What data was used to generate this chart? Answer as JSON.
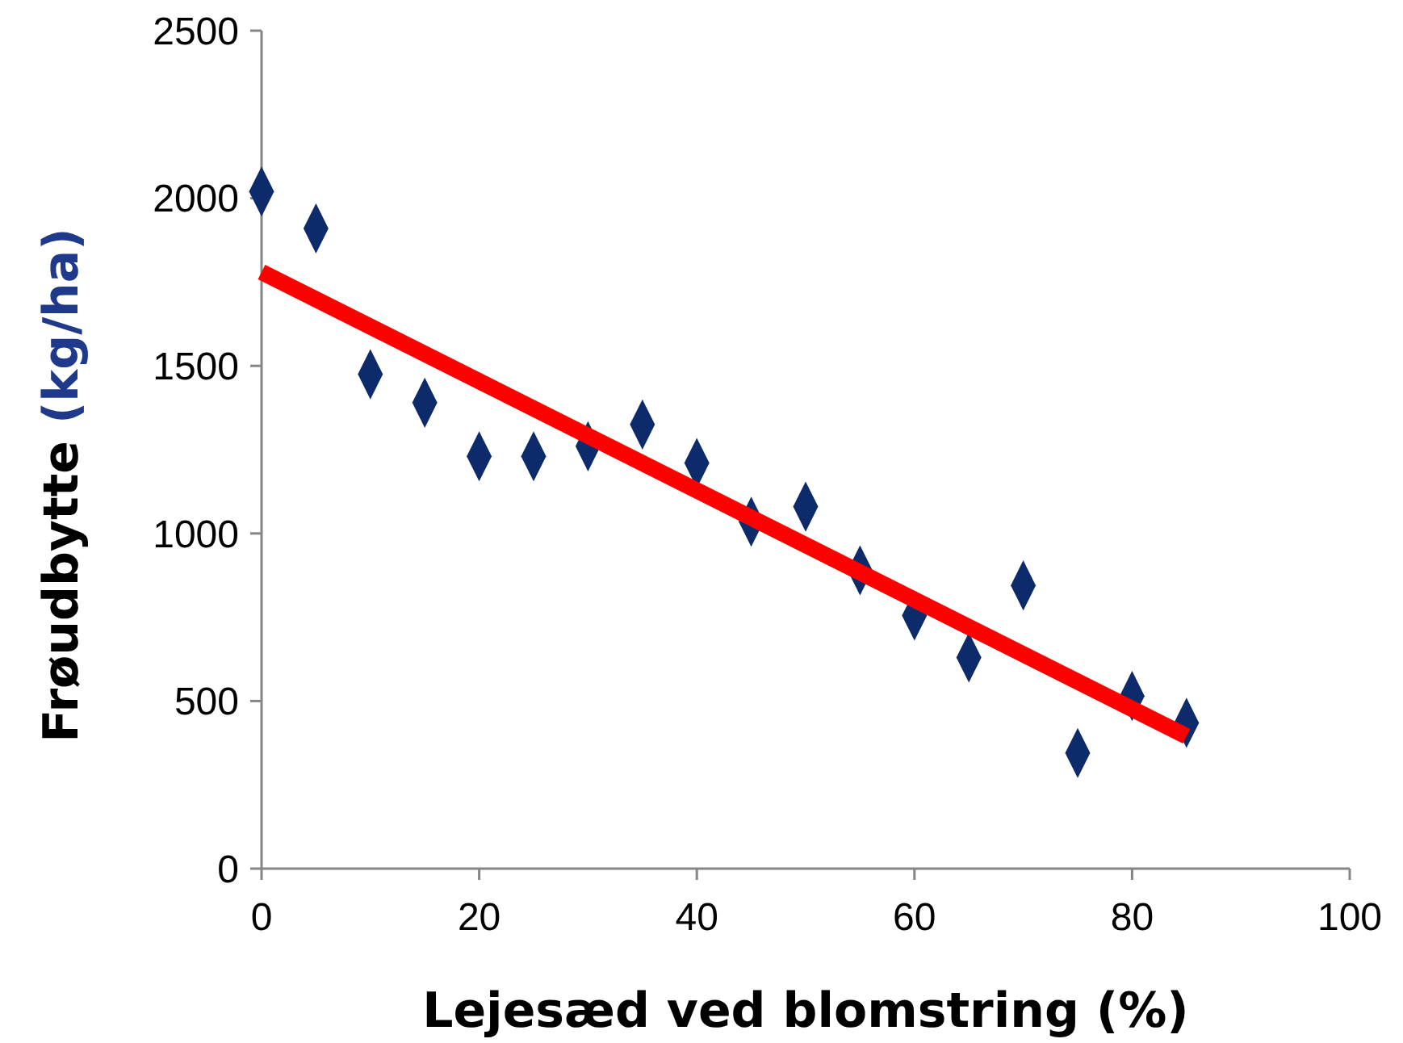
{
  "chart_data": {
    "type": "scatter",
    "xlabel": "Lejesæd ved blomstring (%)",
    "ylabel": "Frøudbytte (kg/ha)",
    "x": [
      0,
      5,
      10,
      15,
      20,
      25,
      30,
      35,
      40,
      45,
      50,
      55,
      60,
      65,
      70,
      75,
      80,
      85
    ],
    "series": [
      {
        "color": "#0d2a6b",
        "marker": "diamond",
        "values": [
          2020,
          1910,
          1475,
          1390,
          1230,
          1230,
          1260,
          1325,
          1210,
          1035,
          1080,
          890,
          755,
          630,
          845,
          345,
          515,
          435
        ]
      },
      {
        "type": "line",
        "color": "#ff0000",
        "x": [
          0,
          85
        ],
        "values": [
          1780,
          395
        ]
      }
    ],
    "xlim": [
      0,
      100
    ],
    "xticks": [
      0,
      20,
      40,
      60,
      80,
      100
    ],
    "ylim": [
      0,
      2500
    ],
    "yticks": [
      0,
      500,
      1000,
      1500,
      2000,
      2500
    ],
    "grid": false
  }
}
